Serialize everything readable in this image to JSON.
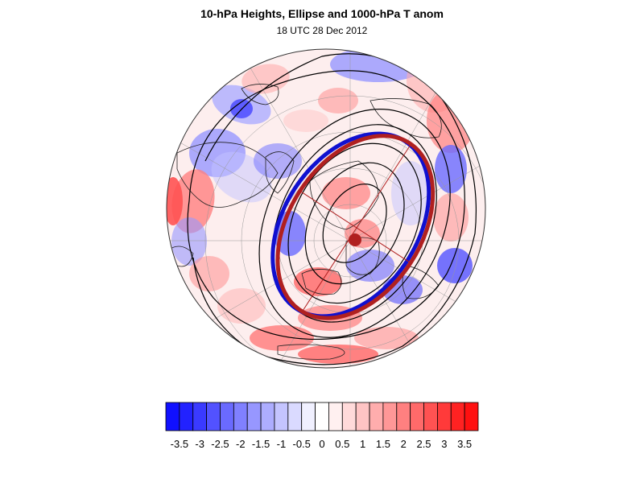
{
  "title": "10-hPa Heights, Ellipse and 1000-hPa T anom",
  "subtitle": "18 UTC 28 Dec 2012",
  "colorbar": {
    "labels": [
      "-3.5",
      "-3",
      "-2.5",
      "-2",
      "-1.5",
      "-1",
      "-0.5",
      "0",
      "0.5",
      "1",
      "1.5",
      "2",
      "2.5",
      "3",
      "3.5"
    ],
    "colors": [
      "#1010ff",
      "#2222ff",
      "#3a3aff",
      "#5252ff",
      "#6a6aff",
      "#8080ff",
      "#9797ff",
      "#adadff",
      "#c4c4ff",
      "#dadaff",
      "#f0f0ff",
      "#ffffff",
      "#fff0f0",
      "#ffdada",
      "#ffc4c4",
      "#ffadad",
      "#ff9797",
      "#ff8080",
      "#ff6a6a",
      "#ff5252",
      "#ff3a3a",
      "#ff2222",
      "#ff1010"
    ]
  },
  "overlays": {
    "fitted_ellipse_color": "#b02020",
    "vortex_edge_color": "#1010d0",
    "center_marker_color": "#b02020",
    "height_contour_color": "#000000"
  }
}
